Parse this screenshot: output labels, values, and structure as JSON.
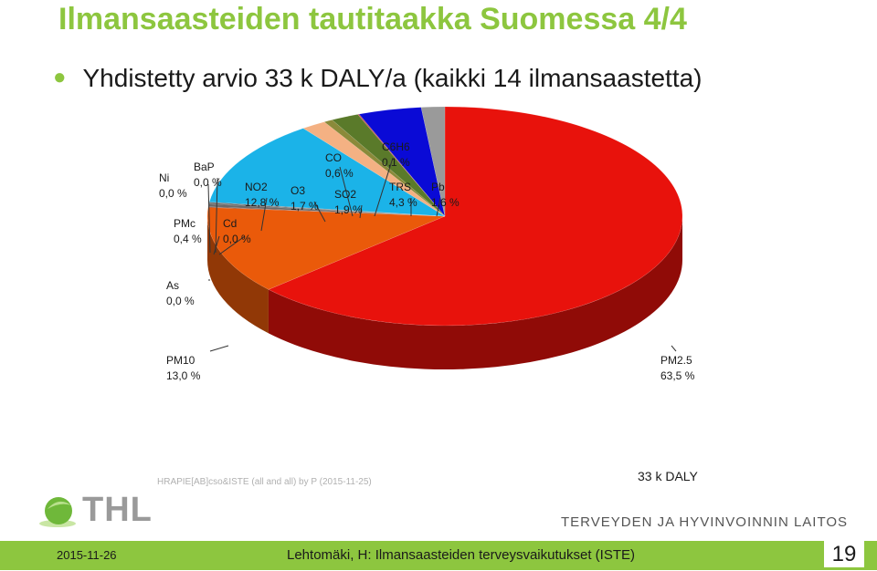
{
  "slide": {
    "title": "Ilmansaasteiden tautitaakka Suomessa 4/4",
    "bullet": "Yhdistetty arvio 33 k DALY/a (kaikki 14 ilmansaastetta)"
  },
  "chart_data": {
    "type": "pie",
    "source_note": "HRAPIE[AB]cso&ISTE (all and all) by P (2015-11-25)",
    "total_label": "33 k DALY",
    "slices": [
      {
        "name": "PM2.5",
        "value": 63.5,
        "label": "63,5 %",
        "color": "#e8120c"
      },
      {
        "name": "PM10",
        "value": 13.0,
        "label": "13,0 %",
        "color": "#ea5a0a"
      },
      {
        "name": "As",
        "value": 0.0,
        "label": "0,0 %",
        "color": "#7b2b1a"
      },
      {
        "name": "PMc",
        "value": 0.4,
        "label": "0,4 %",
        "color": "#6a6a6a"
      },
      {
        "name": "Ni",
        "value": 0.0,
        "label": "0,0 %",
        "color": "#333333"
      },
      {
        "name": "BaP",
        "value": 0.0,
        "label": "0,0 %",
        "color": "#444444"
      },
      {
        "name": "Cd",
        "value": 0.0,
        "label": "0,0 %",
        "color": "#555555"
      },
      {
        "name": "NO2",
        "value": 12.8,
        "label": "12,8 %",
        "color": "#1bb3e8"
      },
      {
        "name": "O3",
        "value": 1.7,
        "label": "1,7 %",
        "color": "#f4b183"
      },
      {
        "name": "CO",
        "value": 0.6,
        "label": "0,6 %",
        "color": "#8a8a3a"
      },
      {
        "name": "SO2",
        "value": 1.9,
        "label": "1,9 %",
        "color": "#5a7a2a"
      },
      {
        "name": "C6H6",
        "value": 0.1,
        "label": "0,1 %",
        "color": "#c05050"
      },
      {
        "name": "TRS",
        "value": 4.3,
        "label": "4,3 %",
        "color": "#0a0ad6"
      },
      {
        "name": "Pb",
        "value": 1.6,
        "label": "1,6 %",
        "color": "#9a9a9a"
      }
    ]
  },
  "branding": {
    "logo_text": "THL",
    "institute": "TERVEYDEN JA HYVINVOINNIN LAITOS"
  },
  "footer": {
    "date": "2015-11-26",
    "text": "Lehtomäki, H: Ilmansaasteiden terveysvaikutukset (ISTE)",
    "page": "19"
  }
}
